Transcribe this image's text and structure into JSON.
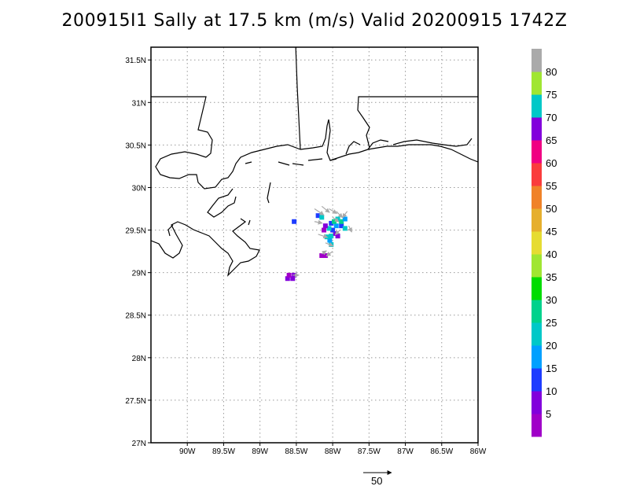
{
  "title": "200915I1 Sally at 17.5 km (m/s) Valid 20200915 1742Z",
  "map": {
    "lon_range": [
      -90.5,
      -86
    ],
    "lat_range": [
      27,
      31.65
    ],
    "lon_ticks": [
      {
        "value": -90,
        "label": "90W"
      },
      {
        "value": -89.5,
        "label": "89.5W"
      },
      {
        "value": -89,
        "label": "89W"
      },
      {
        "value": -88.5,
        "label": "88.5W"
      },
      {
        "value": -88,
        "label": "88W"
      },
      {
        "value": -87.5,
        "label": "87.5W"
      },
      {
        "value": -87,
        "label": "87W"
      },
      {
        "value": -86.5,
        "label": "86.5W"
      },
      {
        "value": -86,
        "label": "86W"
      }
    ],
    "lat_ticks": [
      {
        "value": 27,
        "label": "27N"
      },
      {
        "value": 27.5,
        "label": "27.5N"
      },
      {
        "value": 28,
        "label": "28N"
      },
      {
        "value": 28.5,
        "label": "28.5N"
      },
      {
        "value": 29,
        "label": "29N"
      },
      {
        "value": 29.5,
        "label": "29.5N"
      },
      {
        "value": 30,
        "label": "30N"
      },
      {
        "value": 30.5,
        "label": "30.5N"
      },
      {
        "value": 31,
        "label": "31N"
      },
      {
        "value": 31.5,
        "label": "31.5N"
      }
    ],
    "grid": true
  },
  "colorbar": {
    "colors": [
      "#a000c8",
      "#8200dc",
      "#1e3cff",
      "#00a0ff",
      "#00c8c8",
      "#00d28c",
      "#00dc00",
      "#a0e632",
      "#e6dc32",
      "#e6af2d",
      "#f08228",
      "#fa3c3c",
      "#f00082",
      "#8200dc",
      "#00c8c8",
      "#a0e632",
      "#aaaaaa"
    ],
    "labels": [
      "5",
      "10",
      "15",
      "20",
      "25",
      "30",
      "35",
      "40",
      "45",
      "50",
      "55",
      "60",
      "65",
      "70",
      "75",
      "80"
    ]
  },
  "wind_cells": [
    {
      "lon": -88.62,
      "lat": 28.93,
      "color": "#8200dc"
    },
    {
      "lon": -88.55,
      "lat": 28.93,
      "color": "#8200dc"
    },
    {
      "lon": -88.6,
      "lat": 28.97,
      "color": "#a000c8"
    },
    {
      "lon": -88.53,
      "lat": 28.97,
      "color": "#8200dc"
    },
    {
      "lon": -88.15,
      "lat": 29.2,
      "color": "#a000c8"
    },
    {
      "lon": -88.1,
      "lat": 29.2,
      "color": "#a000c8"
    },
    {
      "lon": -88.02,
      "lat": 29.33,
      "color": "#00c8c8"
    },
    {
      "lon": -88.04,
      "lat": 29.38,
      "color": "#00a0ff"
    },
    {
      "lon": -88.08,
      "lat": 29.42,
      "color": "#00c8c8"
    },
    {
      "lon": -88.02,
      "lat": 29.43,
      "color": "#00c8c8"
    },
    {
      "lon": -87.96,
      "lat": 29.46,
      "color": "#8200dc"
    },
    {
      "lon": -87.93,
      "lat": 29.43,
      "color": "#8200dc"
    },
    {
      "lon": -88.0,
      "lat": 29.5,
      "color": "#1e3cff"
    },
    {
      "lon": -88.05,
      "lat": 29.52,
      "color": "#00c8c8"
    },
    {
      "lon": -87.95,
      "lat": 29.55,
      "color": "#00a0ff"
    },
    {
      "lon": -88.02,
      "lat": 29.58,
      "color": "#1e3cff"
    },
    {
      "lon": -87.88,
      "lat": 29.55,
      "color": "#1e3cff"
    },
    {
      "lon": -87.83,
      "lat": 29.52,
      "color": "#00c8c8"
    },
    {
      "lon": -87.88,
      "lat": 29.6,
      "color": "#00d28c"
    },
    {
      "lon": -87.93,
      "lat": 29.63,
      "color": "#00c8c8"
    },
    {
      "lon": -87.98,
      "lat": 29.6,
      "color": "#00d28c"
    },
    {
      "lon": -87.83,
      "lat": 29.63,
      "color": "#00a0ff"
    },
    {
      "lon": -88.1,
      "lat": 29.55,
      "color": "#8200dc"
    },
    {
      "lon": -88.12,
      "lat": 29.5,
      "color": "#a000c8"
    },
    {
      "lon": -88.2,
      "lat": 29.67,
      "color": "#1e3cff"
    },
    {
      "lon": -88.15,
      "lat": 29.65,
      "color": "#00c8c8"
    },
    {
      "lon": -88.53,
      "lat": 29.6,
      "color": "#1e3cff"
    }
  ],
  "wind_vectors": [
    {
      "lon": -88.55,
      "lat": 28.97,
      "dx": 8,
      "dy": 0
    },
    {
      "lon": -88.15,
      "lat": 29.22,
      "dx": 6,
      "dy": -4
    },
    {
      "lon": -88.25,
      "lat": 29.75,
      "dx": 12,
      "dy": 8
    },
    {
      "lon": -88.15,
      "lat": 29.78,
      "dx": 10,
      "dy": 8
    },
    {
      "lon": -88.05,
      "lat": 29.75,
      "dx": 10,
      "dy": 6
    },
    {
      "lon": -87.95,
      "lat": 29.72,
      "dx": 8,
      "dy": 8
    },
    {
      "lon": -87.8,
      "lat": 29.72,
      "dx": -6,
      "dy": 8
    },
    {
      "lon": -87.78,
      "lat": 29.55,
      "dx": 4,
      "dy": 8
    },
    {
      "lon": -88.2,
      "lat": 29.45,
      "dx": 12,
      "dy": 4
    },
    {
      "lon": -88.1,
      "lat": 29.35,
      "dx": 10,
      "dy": 4
    },
    {
      "lon": -88.0,
      "lat": 29.25,
      "dx": -8,
      "dy": 6
    },
    {
      "lon": -88.25,
      "lat": 29.6,
      "dx": 10,
      "dy": 2
    },
    {
      "lon": -88.0,
      "lat": 29.65,
      "dx": 8,
      "dy": 6
    },
    {
      "lon": -87.9,
      "lat": 29.5,
      "dx": -6,
      "dy": 6
    }
  ],
  "scale_vector": {
    "label": "50"
  }
}
